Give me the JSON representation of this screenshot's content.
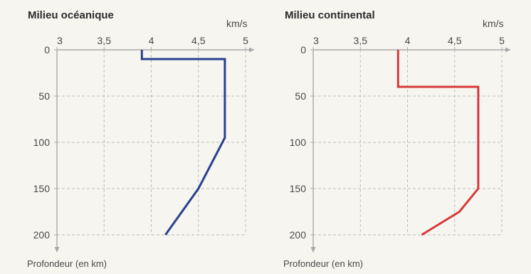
{
  "chart_data": [
    {
      "type": "line",
      "title": "Milieu océanique",
      "x_unit": "km/s",
      "ylabel": "Profondeur (en km)",
      "xlim": [
        3,
        5
      ],
      "ylim": [
        0,
        200
      ],
      "y_inverted": true,
      "x_ticks": [
        "3",
        "3,5",
        "4",
        "4,5",
        "5"
      ],
      "x_tick_values": [
        3,
        3.5,
        4,
        4.5,
        5
      ],
      "y_ticks": [
        "0",
        "50",
        "100",
        "150",
        "200"
      ],
      "y_tick_values": [
        0,
        50,
        100,
        150,
        200
      ],
      "grid": true,
      "color": "#2b3f8e",
      "series": [
        {
          "x": [
            3.9,
            3.9,
            4.78,
            4.78,
            4.5,
            4.15
          ],
          "y": [
            0,
            10,
            10,
            95,
            150,
            200
          ]
        }
      ]
    },
    {
      "type": "line",
      "title": "Milieu continental",
      "x_unit": "km/s",
      "ylabel": "Profondeur (en km)",
      "xlim": [
        3,
        5
      ],
      "ylim": [
        0,
        200
      ],
      "y_inverted": true,
      "x_ticks": [
        "3",
        "3,5",
        "4",
        "4,5",
        "5"
      ],
      "x_tick_values": [
        3,
        3.5,
        4,
        4.5,
        5
      ],
      "y_ticks": [
        "0",
        "50",
        "100",
        "150",
        "200"
      ],
      "y_tick_values": [
        0,
        50,
        100,
        150,
        200
      ],
      "grid": true,
      "color": "#d63a36",
      "series": [
        {
          "x": [
            3.9,
            3.9,
            4.75,
            4.75,
            4.55,
            4.15
          ],
          "y": [
            0,
            40,
            40,
            150,
            175,
            200
          ]
        }
      ]
    }
  ]
}
